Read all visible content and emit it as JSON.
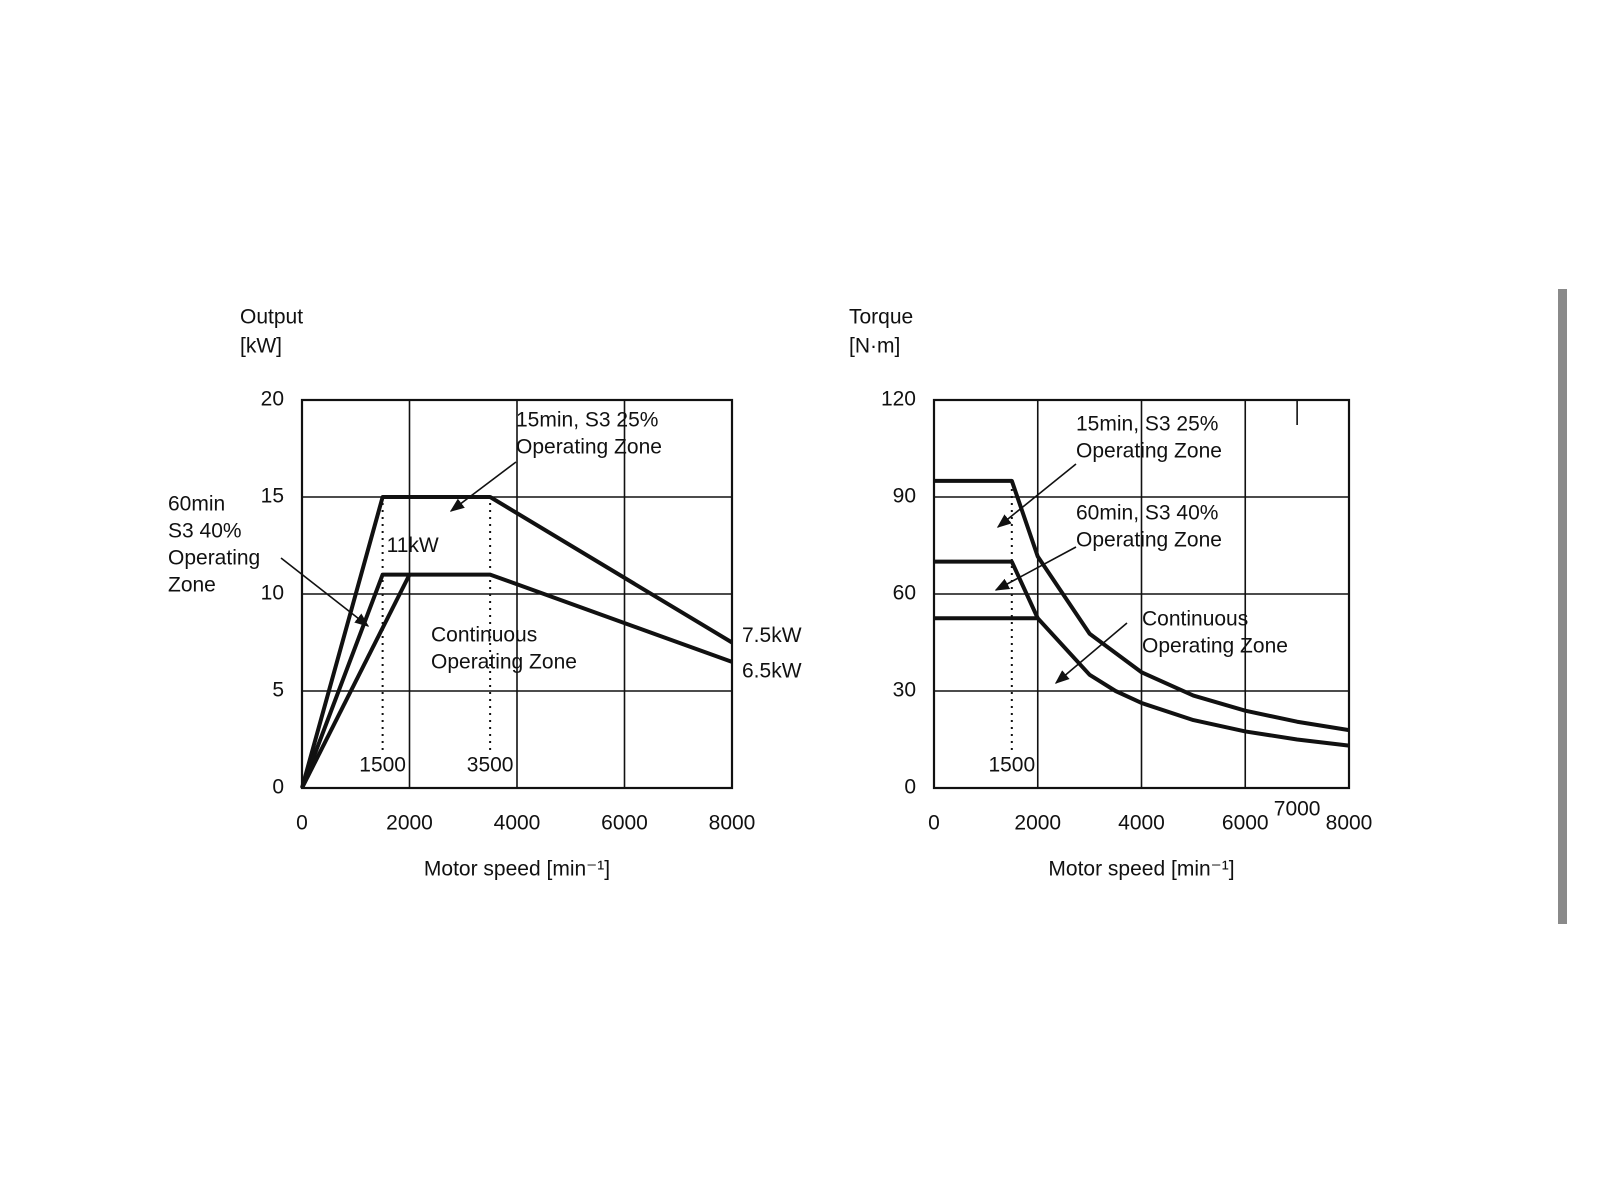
{
  "chart_data": [
    {
      "type": "line",
      "y_label": [
        "Output",
        "[kW]"
      ],
      "x_label": "Motor speed [min⁻¹]",
      "xlim": [
        0,
        8000
      ],
      "xticks": [
        0,
        2000,
        4000,
        6000,
        8000
      ],
      "ylim": [
        0,
        20
      ],
      "yticks": [
        0,
        5,
        10,
        15,
        20
      ],
      "grid": true,
      "series": [
        {
          "color": "#111111",
          "x": [
            0,
            1500,
            3500,
            8000
          ],
          "values": [
            0,
            15,
            15,
            7.5
          ],
          "value_labels": [
            null,
            null,
            null,
            "7.5kW"
          ]
        },
        {
          "color": "#111111",
          "x": [
            0,
            1500,
            3500,
            8000
          ],
          "values": [
            0,
            11,
            11,
            6.5
          ],
          "value_labels": [
            null,
            "11kW",
            null,
            "6.5kW"
          ]
        },
        {
          "color": "#111111",
          "x": [
            0,
            2000
          ],
          "values": [
            0,
            11
          ]
        }
      ],
      "vlines": [
        1500,
        3500
      ],
      "annotations": [
        [
          "15min, S3 25%",
          "Operating Zone"
        ],
        [
          "60min",
          "S3 40%",
          "Operating",
          "Zone"
        ],
        [
          "Continuous",
          "Operating Zone"
        ]
      ]
    },
    {
      "type": "line",
      "y_label": [
        "Torque",
        "[N·m]"
      ],
      "x_label": "Motor speed [min⁻¹]",
      "xlim": [
        0,
        8000
      ],
      "xticks": [
        0,
        2000,
        4000,
        6000,
        7000,
        8000
      ],
      "ylim": [
        0,
        120
      ],
      "yticks": [
        0,
        30,
        60,
        90,
        120
      ],
      "grid": true,
      "series": [
        {
          "color": "#111111",
          "x": [
            0,
            1500,
            2000,
            3000,
            4000,
            5000,
            6000,
            7000,
            8000
          ],
          "values": [
            95,
            95,
            71.6,
            47.7,
            35.8,
            28.6,
            23.9,
            20.5,
            17.9
          ]
        },
        {
          "color": "#111111",
          "x": [
            0,
            1500,
            2000,
            3000,
            3500,
            4000,
            5000,
            6000,
            7000,
            8000
          ],
          "values": [
            70,
            70,
            52.5,
            35,
            30,
            26.3,
            21,
            17.5,
            15,
            13.1
          ]
        },
        {
          "color": "#111111",
          "x": [
            0,
            2000
          ],
          "values": [
            52.5,
            52.5
          ]
        }
      ],
      "vlines": [
        1500
      ],
      "annotations": [
        [
          "15min, S3 25%",
          "Operating Zone"
        ],
        [
          "60min, S3 40%",
          "Operating Zone"
        ],
        [
          "Continuous",
          "Operating Zone"
        ]
      ]
    }
  ]
}
